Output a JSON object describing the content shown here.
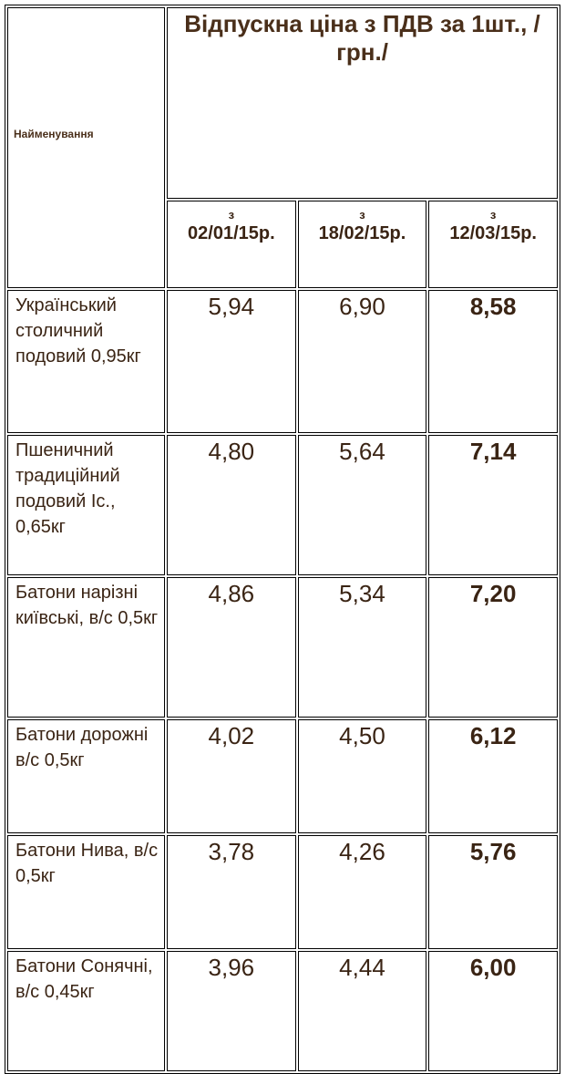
{
  "header": {
    "name_label": "Найменування",
    "price_label": "Відпускна ціна з ПДВ за 1шт., /грн./",
    "dates": [
      {
        "prefix": "з",
        "date": "02/01/15р."
      },
      {
        "prefix": "з",
        "date": "18/02/15р."
      },
      {
        "prefix": "з",
        "date": "12/03/15р."
      }
    ]
  },
  "rows": [
    {
      "name": "Український столичний подовий 0,95кг",
      "v1": "5,94",
      "v2": "6,90",
      "v3": "8,58"
    },
    {
      "name": "Пшеничний традиційний подовий Іс., 0,65кг",
      "v1": "4,80",
      "v2": "5,64",
      "v3": "7,14"
    },
    {
      "name": "Батони нарізні київські, в/с 0,5кг",
      "v1": "4,86",
      "v2": "5,34",
      "v3": "7,20"
    },
    {
      "name": "Батони дорожні в/с 0,5кг",
      "v1": "4,02",
      "v2": "4,50",
      "v3": "6,12"
    },
    {
      "name": "Батони Нива, в/с 0,5кг",
      "v1": "3,78",
      "v2": "4,26",
      "v3": "5,76"
    },
    {
      "name": "Батони Сонячні, в/с 0,45кг",
      "v1": "3,96",
      "v2": "4,44",
      "v3": "6,00"
    }
  ]
}
